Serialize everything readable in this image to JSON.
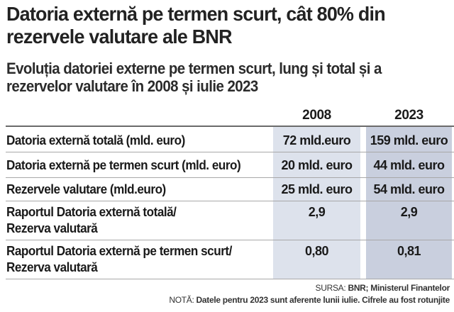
{
  "title": "Datoria externă pe termen scurt, cât 80% din rezervele valutare ale BNR",
  "subtitle": "Evoluția datoriei externe pe termen scurt, lung și total și a rezervelor valutare în 2008 și iulie 2023",
  "colors": {
    "col_2008": "#dde2ec",
    "col_2023": "#c9cfde",
    "text": "#1a1a1a"
  },
  "chart_data": {
    "type": "table",
    "columns": [
      "2008",
      "2023"
    ],
    "rows": [
      {
        "label": "Datoria externă totală (mld. euro)",
        "values": [
          "72 mld.euro",
          "159 mld. euro"
        ]
      },
      {
        "label": "Datoria externă pe termen scurt (mld. euro)",
        "values": [
          "20 mld. euro",
          "44 mld. euro"
        ]
      },
      {
        "label": "Rezervele valutare (mld.euro)",
        "values": [
          "25 mld. euro",
          "54 mld. euro"
        ]
      },
      {
        "label_lines": [
          "Raportul Datoria externă totală/",
          "Rezerva valutară"
        ],
        "values": [
          "2,9",
          "2,9"
        ]
      },
      {
        "label_lines": [
          "Raportul Datoria externă pe termen scurt/",
          "Rezerva valutară"
        ],
        "values": [
          "0,80",
          "0,81"
        ]
      }
    ]
  },
  "source": {
    "prefix": "SURSA: ",
    "text": "BNR; Ministerul Finantelor"
  },
  "note": {
    "prefix": "NOTĂ: ",
    "text": "Datele pentru 2023 sunt aferente lunii iulie. Cifrele au fost rotunjite"
  }
}
